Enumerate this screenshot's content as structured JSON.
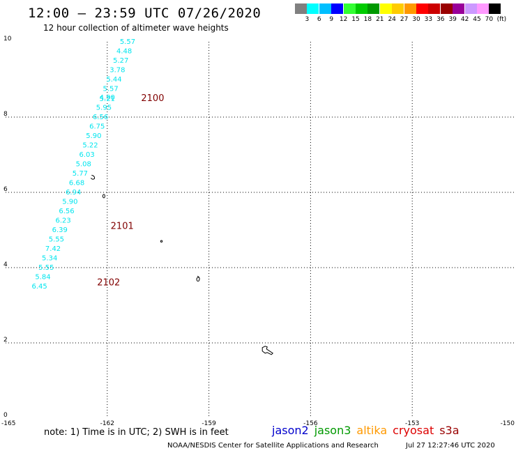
{
  "title": "12:00 – 23:59 UTC 07/26/2020",
  "subtitle": "12 hour collection of altimeter wave heights",
  "colorbar": {
    "unit": "(ft)",
    "swatches": [
      "#808080",
      "#00ffff",
      "#00bfff",
      "#0000ff",
      "#33ff33",
      "#00cc00",
      "#009900",
      "#ffff00",
      "#ffcc00",
      "#ff9900",
      "#ff0000",
      "#cc0000",
      "#990000",
      "#990099",
      "#cc99ff",
      "#ff99ff",
      "#000000"
    ],
    "ticks": [
      "3",
      "6",
      "9",
      "12",
      "15",
      "18",
      "21",
      "24",
      "27",
      "30",
      "33",
      "36",
      "39",
      "42",
      "45",
      "70"
    ]
  },
  "axes": {
    "x_ticks": [
      "-165",
      "-162",
      "-159",
      "-156",
      "-153",
      "-150"
    ],
    "x_values": [
      -165,
      -162,
      -159,
      -156,
      -153,
      -150
    ],
    "y_ticks": [
      "0",
      "2",
      "4",
      "6",
      "8",
      "10"
    ],
    "y_values": [
      0,
      2,
      4,
      6,
      8,
      10
    ],
    "grid": true
  },
  "track_color": "#00e5ee",
  "label_color": "#800000",
  "wave_heights": [
    "5.57",
    "4.48",
    "5.27",
    "3.78",
    "5.44",
    "5.57",
    "4.90",
    "5.21",
    "5.95",
    "6.56",
    "6.75",
    "5.90",
    "5.22",
    "6.03",
    "5.08",
    "5.77",
    "6.68",
    "6.94",
    "5.90",
    "6.56",
    "6.23",
    "6.39",
    "5.55",
    "7.42",
    "5.34",
    "5.55",
    "5.84",
    "6.45"
  ],
  "track_points": [
    {
      "lon": -161.4,
      "lat": 10.0
    },
    {
      "lon": -161.5,
      "lat": 9.75
    },
    {
      "lon": -161.6,
      "lat": 9.5
    },
    {
      "lon": -161.7,
      "lat": 9.25
    },
    {
      "lon": -161.8,
      "lat": 9.0
    },
    {
      "lon": -161.9,
      "lat": 8.75
    },
    {
      "lon": -162.0,
      "lat": 8.52
    },
    {
      "lon": -162.0,
      "lat": 8.48
    },
    {
      "lon": -162.1,
      "lat": 8.25
    },
    {
      "lon": -162.2,
      "lat": 8.0
    },
    {
      "lon": -162.3,
      "lat": 7.75
    },
    {
      "lon": -162.4,
      "lat": 7.5
    },
    {
      "lon": -162.5,
      "lat": 7.25
    },
    {
      "lon": -162.6,
      "lat": 7.0
    },
    {
      "lon": -162.7,
      "lat": 6.75
    },
    {
      "lon": -162.8,
      "lat": 6.5
    },
    {
      "lon": -162.9,
      "lat": 6.25
    },
    {
      "lon": -163.0,
      "lat": 6.0
    },
    {
      "lon": -163.1,
      "lat": 5.75
    },
    {
      "lon": -163.2,
      "lat": 5.5
    },
    {
      "lon": -163.3,
      "lat": 5.25
    },
    {
      "lon": -163.4,
      "lat": 5.0
    },
    {
      "lon": -163.5,
      "lat": 4.75
    },
    {
      "lon": -163.6,
      "lat": 4.5
    },
    {
      "lon": -163.7,
      "lat": 4.25
    },
    {
      "lon": -163.8,
      "lat": 4.0
    },
    {
      "lon": -163.9,
      "lat": 3.75
    },
    {
      "lon": -164.0,
      "lat": 3.5
    }
  ],
  "time_labels": [
    {
      "text": "2100",
      "lon": -161.0,
      "lat": 8.5
    },
    {
      "text": "2101",
      "lon": -161.9,
      "lat": 5.1
    },
    {
      "text": "2102",
      "lon": -162.3,
      "lat": 3.6
    }
  ],
  "islands": [
    {
      "name": "island-a",
      "lon": -162.4,
      "lat": 6.4
    },
    {
      "name": "island-b",
      "lon": -162.1,
      "lat": 5.9
    },
    {
      "name": "island-c",
      "lon": -160.4,
      "lat": 4.7
    },
    {
      "name": "island-d",
      "lon": -159.3,
      "lat": 3.7
    },
    {
      "name": "island-e",
      "lon": -157.3,
      "lat": 1.8
    }
  ],
  "note": "note:  1) Time is in UTC;  2) SWH is in feet",
  "satellites": [
    {
      "name": "jason2",
      "color": "#0000cc"
    },
    {
      "name": "jason3",
      "color": "#009900"
    },
    {
      "name": "altika",
      "color": "#ff9900"
    },
    {
      "name": "cryosat",
      "color": "#dd0000"
    },
    {
      "name": "s3a",
      "color": "#990000"
    }
  ],
  "footer": {
    "organization": "NOAA/NESDIS Center for Satellite Applications and Research",
    "timestamp": "Jul 27 12:27:46 UTC 2020"
  }
}
